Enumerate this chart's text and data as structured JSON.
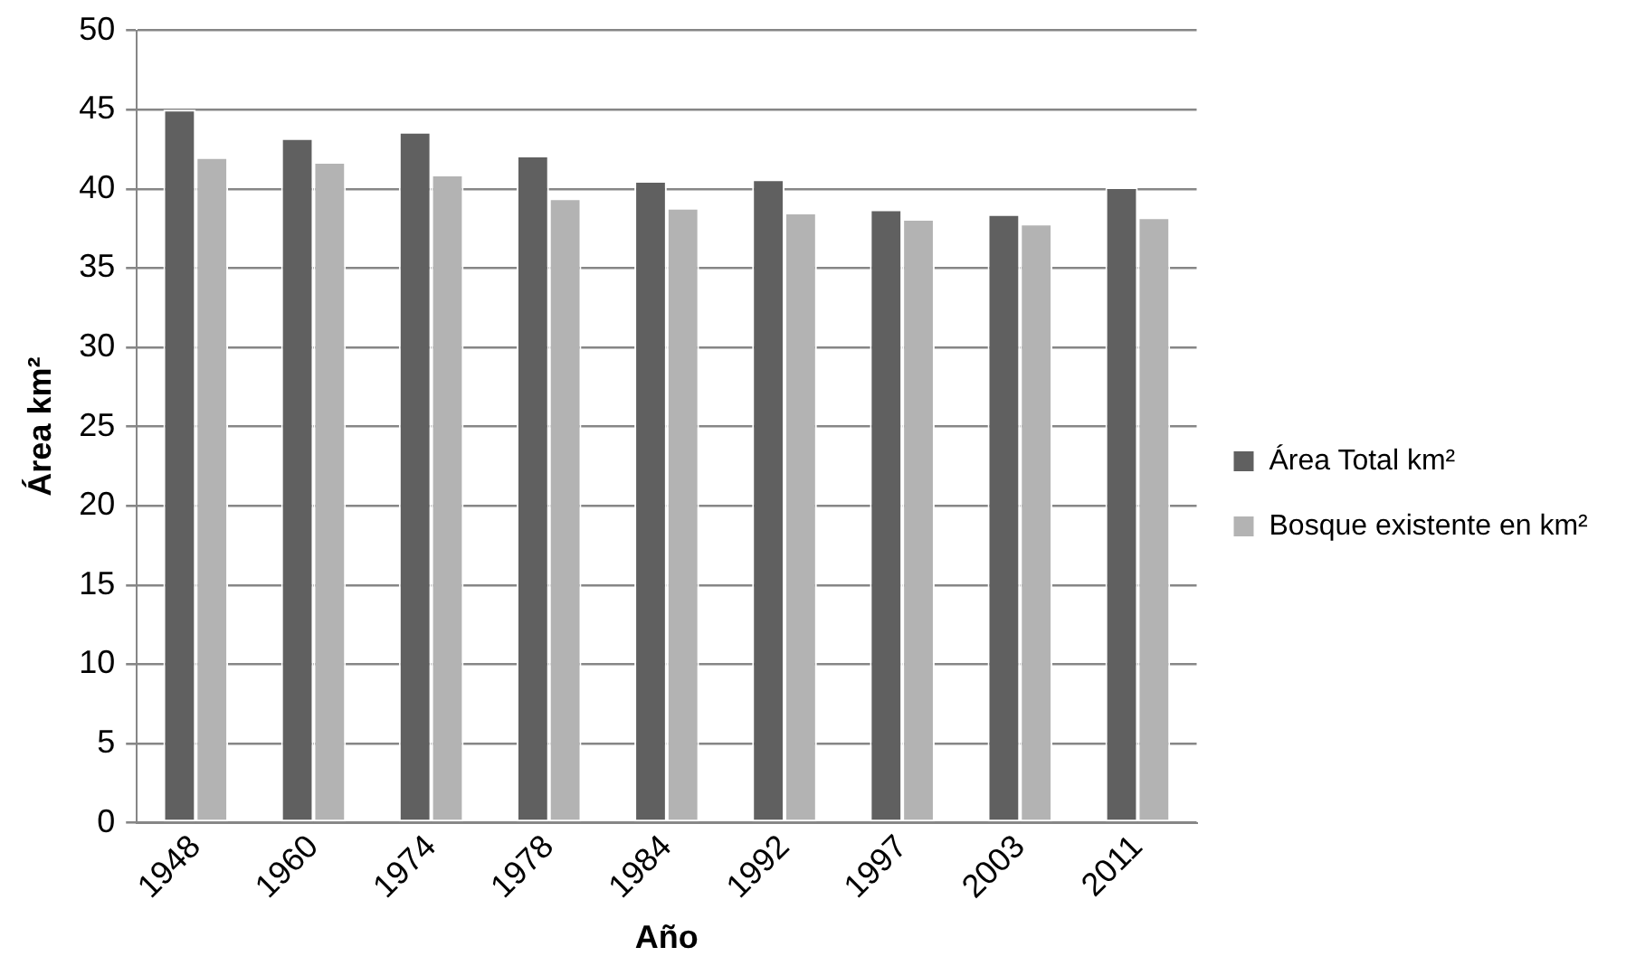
{
  "chart_data": {
    "type": "bar",
    "xlabel": "Año",
    "ylabel": "Área km²",
    "categories": [
      "1948",
      "1960",
      "1974",
      "1978",
      "1984",
      "1992",
      "1997",
      "2003",
      "2011"
    ],
    "series": [
      {
        "name": "Área Total km²",
        "color": "#606060",
        "values": [
          45.0,
          43.2,
          43.6,
          42.1,
          40.5,
          40.6,
          38.7,
          38.4,
          40.1
        ]
      },
      {
        "name": "Bosque existente en km²",
        "color": "#b3b3b3",
        "values": [
          42.0,
          41.7,
          40.9,
          39.4,
          38.8,
          38.5,
          38.1,
          37.8,
          38.2
        ]
      }
    ],
    "ylim": [
      0,
      50
    ],
    "yticks": [
      0,
      5,
      10,
      15,
      20,
      25,
      30,
      35,
      40,
      45,
      50
    ],
    "grid": "y",
    "legend": "right"
  }
}
